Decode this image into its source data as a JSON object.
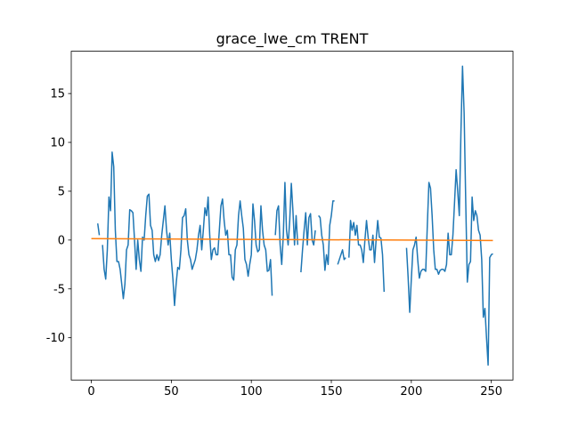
{
  "chart_data": {
    "type": "line",
    "title": "grace_lwe_cm TRENT",
    "x": [
      0,
      1,
      2,
      3,
      4,
      5,
      6,
      7,
      8,
      9,
      10,
      11,
      12,
      13,
      14,
      15,
      16,
      17,
      18,
      19,
      20,
      21,
      22,
      23,
      24,
      25,
      26,
      27,
      28,
      29,
      30,
      31,
      32,
      33,
      34,
      35,
      36,
      37,
      38,
      39,
      40,
      41,
      42,
      43,
      44,
      45,
      46,
      47,
      48,
      49,
      50,
      51,
      52,
      53,
      54,
      55,
      56,
      57,
      58,
      59,
      60,
      61,
      62,
      63,
      64,
      65,
      66,
      67,
      68,
      69,
      70,
      71,
      72,
      73,
      74,
      75,
      76,
      77,
      78,
      79,
      80,
      81,
      82,
      83,
      84,
      85,
      86,
      87,
      88,
      89,
      90,
      91,
      92,
      93,
      94,
      95,
      96,
      97,
      98,
      99,
      100,
      101,
      102,
      103,
      104,
      105,
      106,
      107,
      108,
      109,
      110,
      111,
      112,
      113,
      114,
      115,
      116,
      117,
      118,
      119,
      120,
      121,
      122,
      123,
      124,
      125,
      126,
      127,
      128,
      129,
      130,
      131,
      132,
      133,
      134,
      135,
      136,
      137,
      138,
      139,
      140,
      141,
      142,
      143,
      144,
      145,
      146,
      147,
      148,
      149,
      150,
      151,
      152,
      153,
      154,
      155,
      156,
      157,
      158,
      159,
      160,
      161,
      162,
      163,
      164,
      165,
      166,
      167,
      168,
      169,
      170,
      171,
      172,
      173,
      174,
      175,
      176,
      177,
      178,
      179,
      180,
      181,
      182,
      183,
      184,
      185,
      186,
      187,
      188,
      189,
      190,
      191,
      192,
      193,
      194,
      195,
      196,
      197,
      198,
      199,
      200,
      201,
      202,
      203,
      204,
      205,
      206,
      207,
      208,
      209,
      210,
      211,
      212,
      213,
      214,
      215,
      216,
      217,
      218,
      219,
      220,
      221,
      222,
      223,
      224,
      225,
      226,
      227,
      228,
      229,
      230,
      231,
      232,
      233,
      234,
      235,
      236,
      237,
      238,
      239,
      240,
      241,
      242,
      243,
      244,
      245,
      246,
      247,
      248,
      249,
      250,
      251
    ],
    "series": [
      {
        "color": "#1f77b4",
        "values": [
          null,
          null,
          null,
          null,
          1.7,
          0.5,
          null,
          -0.5,
          -3,
          -4,
          -1,
          4.4,
          3,
          9,
          7.5,
          1,
          -2.2,
          -2.2,
          -3,
          -4.5,
          -6,
          -4.5,
          -1,
          -0.5,
          3.1,
          3,
          2.8,
          0,
          -3,
          0,
          -2,
          -3.2,
          0.3,
          0,
          2.5,
          4.5,
          4.7,
          1.5,
          1,
          -1.5,
          -2.2,
          -1.5,
          -2.1,
          -1.5,
          0.5,
          2,
          3.5,
          1,
          -0.5,
          0.7,
          -2,
          -4,
          -6.7,
          -4.5,
          -2.8,
          -3,
          -1,
          2.3,
          2.5,
          3.2,
          0,
          -1.5,
          -2,
          -3,
          -2.5,
          -2,
          -1,
          0.5,
          1.5,
          -1,
          1,
          3.3,
          2.5,
          4.4,
          0.5,
          -2,
          -1,
          -0.8,
          -1.5,
          -1.5,
          1,
          3.5,
          4.2,
          2,
          0.5,
          1,
          -1.5,
          -1.5,
          -3.8,
          -4.1,
          -1,
          -0.5,
          2.5,
          4,
          2.5,
          1.2,
          -2,
          -2.5,
          -3.7,
          -2.5,
          -1.5,
          3.7,
          2,
          -0.5,
          -1.2,
          -1,
          3.5,
          1,
          -0.5,
          -1,
          -3.2,
          -3.1,
          -2,
          -5.7,
          null,
          0.5,
          3,
          3.5,
          -0.5,
          -2.5,
          0.5,
          5.9,
          1,
          -0.5,
          2,
          5.8,
          3,
          -0.5,
          2.5,
          -0.5,
          null,
          -3.3,
          -1,
          1,
          2.8,
          -0.5,
          2.3,
          2.7,
          0,
          -0.5,
          1,
          null,
          2.5,
          2.3,
          0.5,
          -0.5,
          -3.1,
          -1.5,
          -2.5,
          1.5,
          2.5,
          4,
          4,
          null,
          -2.5,
          -2,
          -1.5,
          -1,
          -2,
          -1.8,
          null,
          -1.8,
          2,
          1,
          1.8,
          0.5,
          1.5,
          -0.5,
          -0.5,
          -1,
          -2.3,
          0,
          2,
          0.3,
          -1,
          -1,
          0.5,
          -2.3,
          0,
          2,
          0.3,
          0.2,
          -1.5,
          -5.3,
          null,
          null,
          null,
          null,
          null,
          null,
          null,
          null,
          null,
          null,
          null,
          null,
          null,
          -0.8,
          -3.8,
          -7.4,
          -4,
          -1,
          -0.5,
          0.3,
          -2,
          -3.9,
          -3.2,
          -3,
          -3,
          -3.2,
          1.5,
          5.9,
          5.3,
          2.5,
          -1,
          -3,
          -3,
          -3.5,
          -3.1,
          -3,
          -3,
          -3.2,
          -2.5,
          0.7,
          -1.5,
          -1.5,
          0.5,
          3.8,
          7.2,
          5,
          2.5,
          11,
          17.8,
          13,
          4,
          -4.3,
          -2.5,
          -2.2,
          4.4,
          2,
          3,
          2.5,
          1,
          0.5,
          -2,
          -7.9,
          -7,
          -10,
          -12.8,
          -1.8,
          -1.5,
          -1.4
        ]
      },
      {
        "color": "#ff7f0e",
        "x": [
          0,
          251
        ],
        "values": [
          0.15,
          -0.05
        ]
      }
    ],
    "xlim": [
      -12.55,
      263.55
    ],
    "ylim": [
      -14.33,
      19.33
    ],
    "xticks": [
      0,
      50,
      100,
      150,
      200,
      250
    ],
    "yticks": [
      -10,
      -5,
      0,
      5,
      10,
      15
    ]
  }
}
